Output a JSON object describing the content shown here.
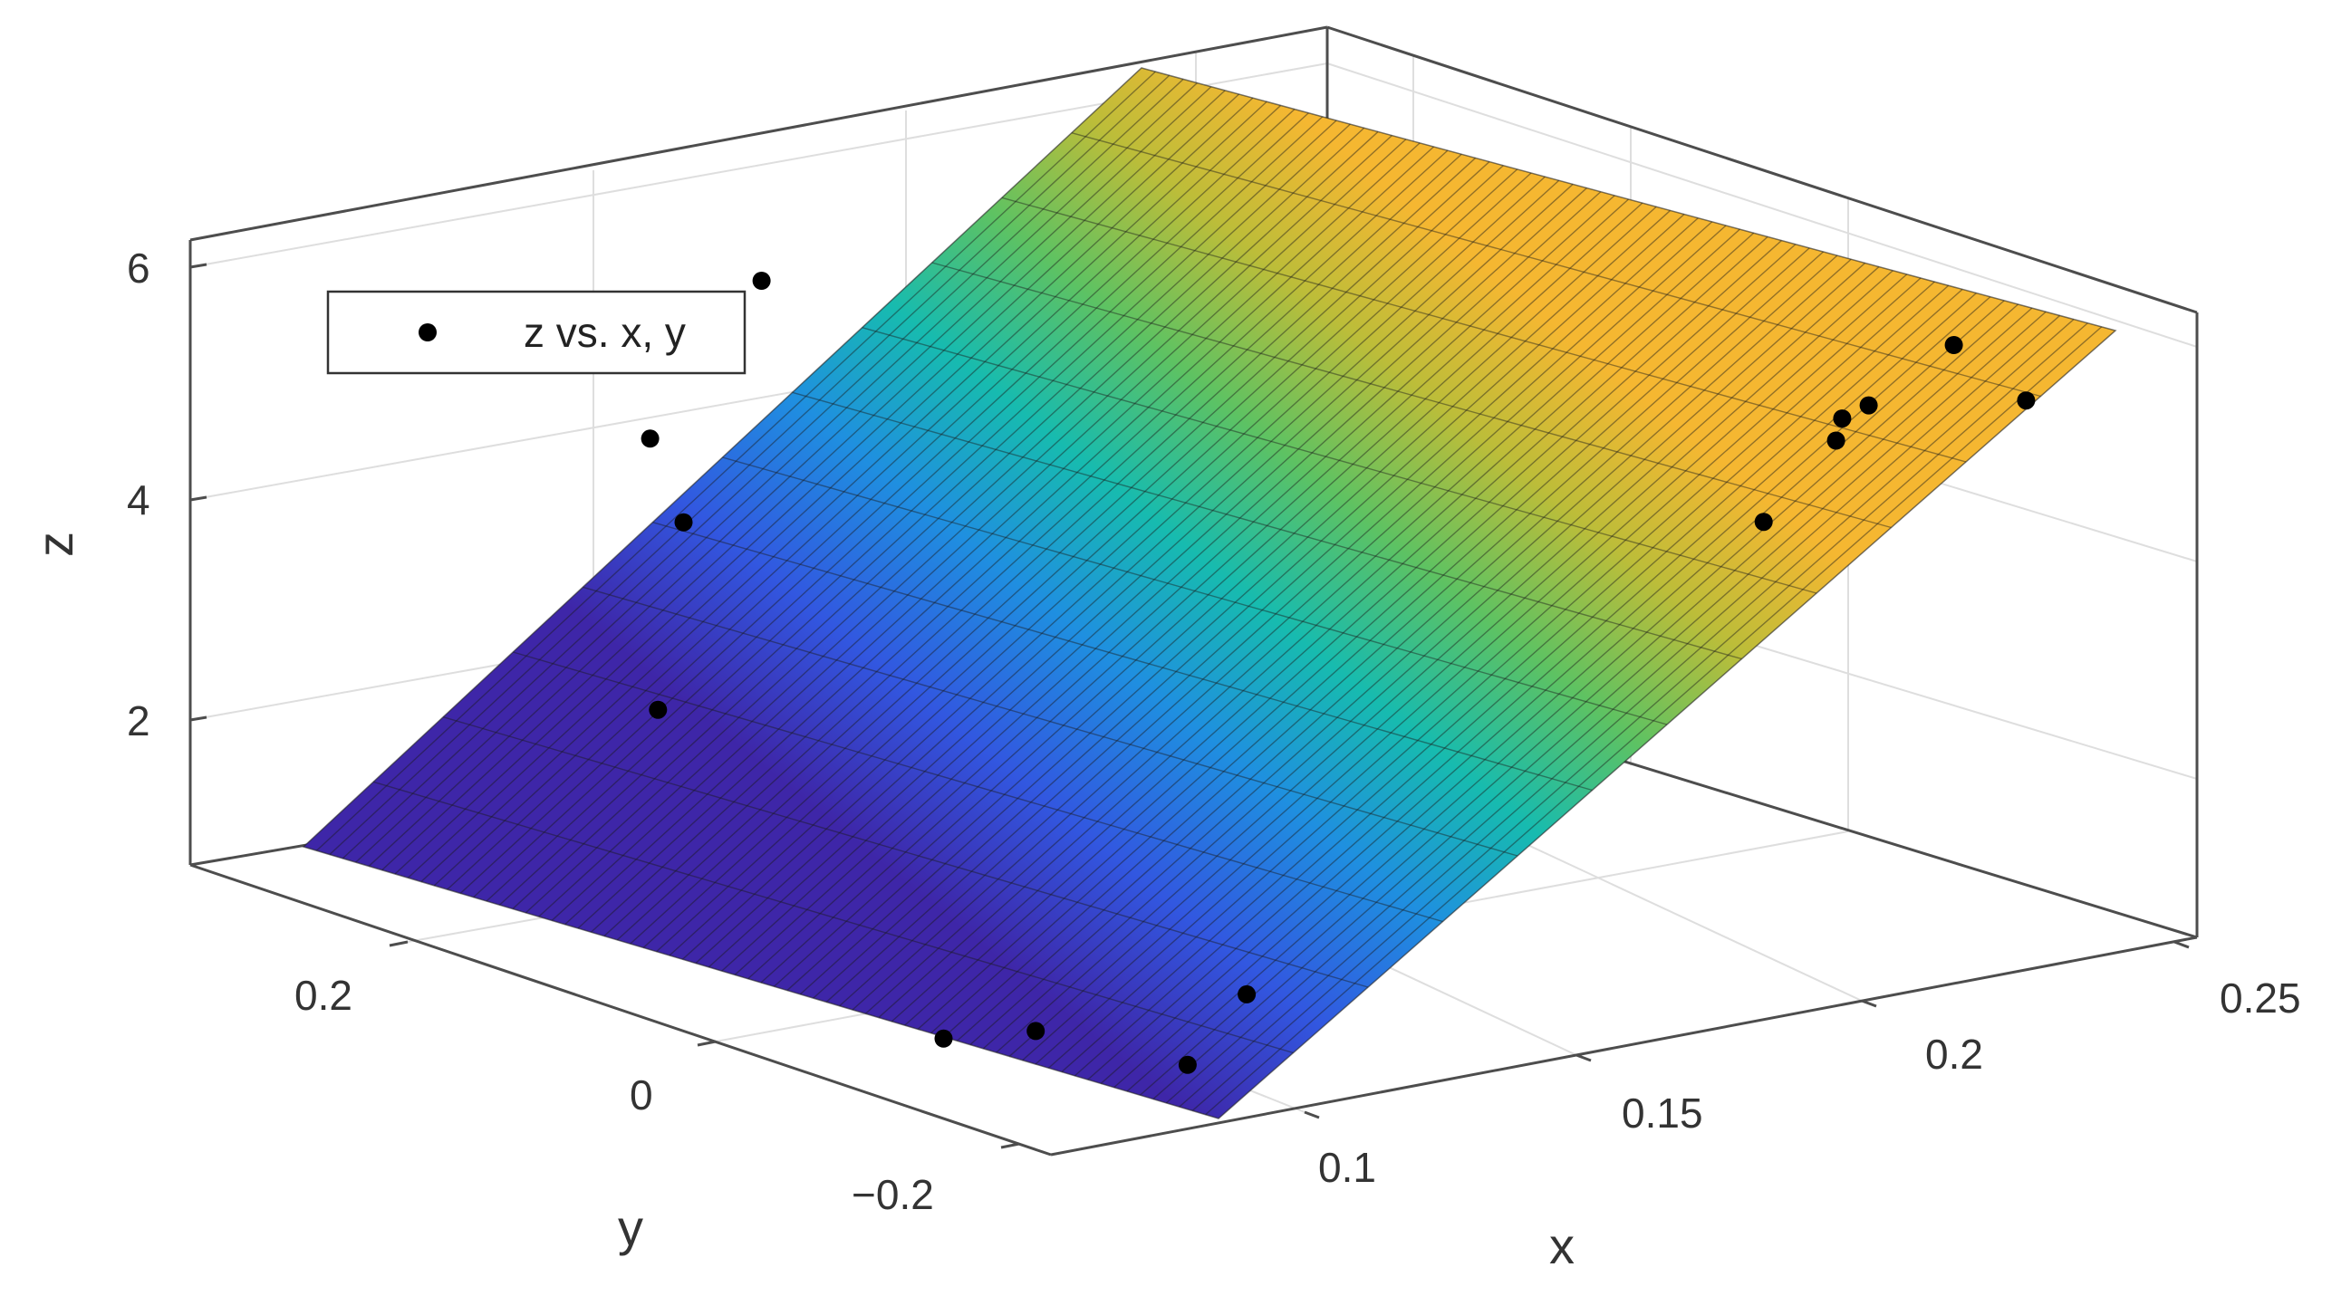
{
  "chart_data": {
    "type": "surface3d",
    "xlabel": "x",
    "ylabel": "y",
    "zlabel": "z",
    "x_ticks": [
      "0.1",
      "0.15",
      "0.2",
      "0.25"
    ],
    "y_ticks": [
      "0.2",
      "0",
      "−0.2"
    ],
    "z_ticks": [
      "2",
      "4",
      "6"
    ],
    "x_tick_values": [
      0.1,
      0.15,
      0.2,
      0.25
    ],
    "y_tick_values": [
      0.2,
      0,
      -0.2
    ],
    "z_tick_values": [
      2,
      4,
      6
    ],
    "xlim": [
      0.075,
      0.25
    ],
    "ylim": [
      -0.3,
      0.35
    ],
    "zlim": [
      0.8,
      6.5
    ],
    "grid": true,
    "colormap": "parula",
    "legend": {
      "entries": [
        "z vs. x, y"
      ],
      "placement": "top-left"
    },
    "surface": {
      "x_range": [
        0.085,
        0.238
      ],
      "y_range": [
        -0.3,
        0.3
      ],
      "z_corners": {
        "x_min": 0.9,
        "x_max": 6.5
      }
    },
    "points": [
      {
        "x": 0.103,
        "y": -0.15,
        "z": 1.0
      },
      {
        "x": 0.108,
        "y": -0.24,
        "z": 1.0
      },
      {
        "x": 0.095,
        "y": -0.12,
        "z": 0.9
      },
      {
        "x": 0.115,
        "y": -0.25,
        "z": 1.6
      },
      {
        "x": 0.108,
        "y": 0.16,
        "z": 2.6
      },
      {
        "x": 0.125,
        "y": 0.25,
        "z": 4.5
      },
      {
        "x": 0.12,
        "y": 0.2,
        "z": 4.0
      },
      {
        "x": 0.14,
        "y": 0.24,
        "z": 5.8
      },
      {
        "x": 0.2,
        "y": -0.22,
        "z": 4.8
      },
      {
        "x": 0.205,
        "y": -0.25,
        "z": 5.6
      },
      {
        "x": 0.212,
        "y": -0.22,
        "z": 5.6
      },
      {
        "x": 0.212,
        "y": -0.24,
        "z": 5.8
      },
      {
        "x": 0.232,
        "y": -0.26,
        "z": 5.7
      },
      {
        "x": 0.225,
        "y": -0.24,
        "z": 6.2
      }
    ]
  },
  "colors": {
    "background": "#ffffff",
    "box": "#4d4d4d",
    "grid": "#dedede",
    "marker": "#000000",
    "surface_low": "#3e26a8",
    "surface_mid": "#17bbaf",
    "surface_high": "#f5b731"
  }
}
